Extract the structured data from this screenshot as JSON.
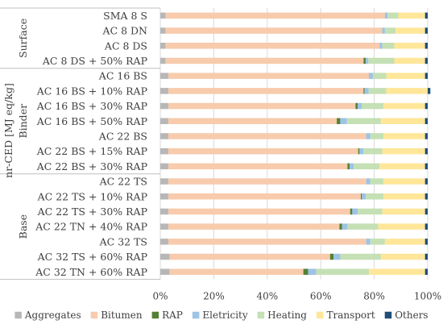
{
  "chart_data": {
    "type": "bar",
    "orientation": "horizontal",
    "stacked": "percent",
    "ylabel": "nr-CED [MJ eq/kg]",
    "xlim": [
      0,
      100
    ],
    "xticks": [
      "0%",
      "20%",
      "40%",
      "60%",
      "80%",
      "100%"
    ],
    "grid": true,
    "legend_position": "bottom",
    "groups": [
      {
        "name": "Surface",
        "categories": [
          "SMA 8 S",
          "AC 8 DN",
          "AC 8 DS",
          "AC 8 DS + 50% RAP"
        ]
      },
      {
        "name": "Binder",
        "categories": [
          "AC 16 BS",
          "AC 16 BS + 10% RAP",
          "AC 16 BS + 30% RAP",
          "AC 16 BS + 50% RAP",
          "AC 22 BS",
          "AC 22 BS + 15% RAP",
          "AC 22 BS + 30% RAP"
        ]
      },
      {
        "name": "Base",
        "categories": [
          "AC 22 TS",
          "AC 22 TS + 10% RAP",
          "AC 22 TS + 30% RAP",
          "AC 22 TN + 40% RAP",
          "AC 32 TS",
          "AC 32 TS + 60% RAP",
          "AC 32 TN + 60% RAP"
        ]
      }
    ],
    "categories": [
      "SMA 8 S",
      "AC 8 DN",
      "AC 8 DS",
      "AC 8 DS + 50% RAP",
      "AC 16 BS",
      "AC 16 BS + 10% RAP",
      "AC 16 BS + 30% RAP",
      "AC 16 BS + 50% RAP",
      "AC 22 BS",
      "AC 22 BS + 15% RAP",
      "AC 22 BS + 30% RAP",
      "AC 22 TS",
      "AC 22 TS + 10% RAP",
      "AC 22 TS + 30% RAP",
      "AC 22 TN + 40% RAP",
      "AC 32 TS",
      "AC 32 TS + 60% RAP",
      "AC 32 TN + 60% RAP"
    ],
    "series": [
      {
        "name": "Aggregates",
        "color": "#b7b7b7",
        "values": [
          2.0,
          2.0,
          2.0,
          2.0,
          3.0,
          3.0,
          3.0,
          3.0,
          3.0,
          3.0,
          3.0,
          3.0,
          3.0,
          3.0,
          3.0,
          3.0,
          3.5,
          3.5
        ]
      },
      {
        "name": "Bitumen",
        "color": "#f7cbac",
        "values": [
          82.0,
          81.0,
          80.0,
          74.0,
          75.0,
          73.0,
          70.0,
          63.0,
          74.0,
          71.0,
          67.0,
          74.0,
          72.0,
          68.0,
          64.0,
          74.0,
          60.0,
          50.0
        ]
      },
      {
        "name": "RAP",
        "color": "#548235",
        "values": [
          0.0,
          0.0,
          0.0,
          0.8,
          0.0,
          0.4,
          0.8,
          1.3,
          0.0,
          0.5,
          0.8,
          0.0,
          0.4,
          0.8,
          1.0,
          0.0,
          1.3,
          1.8
        ]
      },
      {
        "name": "Eletricity",
        "color": "#9dc3e6",
        "values": [
          1.0,
          1.0,
          1.0,
          1.0,
          1.5,
          1.5,
          1.5,
          2.5,
          1.5,
          1.5,
          1.5,
          1.5,
          1.5,
          2.0,
          2.0,
          1.5,
          2.5,
          3.0
        ]
      },
      {
        "name": "Heating",
        "color": "#c5e0b4",
        "values": [
          4.0,
          4.0,
          4.5,
          9.7,
          5.0,
          6.6,
          8.2,
          12.7,
          5.0,
          7.0,
          9.7,
          5.0,
          6.6,
          9.2,
          11.5,
          5.5,
          15.2,
          19.7
        ]
      },
      {
        "name": "Transport",
        "color": "#ffe699",
        "values": [
          10.0,
          11.0,
          11.5,
          11.5,
          14.5,
          15.5,
          15.5,
          16.5,
          15.5,
          16.0,
          17.0,
          15.5,
          15.5,
          16.0,
          17.5,
          15.0,
          16.5,
          21.0
        ]
      },
      {
        "name": "Others",
        "color": "#1f4e79",
        "values": [
          1.0,
          1.0,
          1.0,
          1.0,
          1.0,
          1.0,
          1.0,
          1.0,
          1.0,
          1.0,
          1.0,
          1.0,
          1.0,
          1.0,
          1.0,
          1.0,
          1.0,
          1.0
        ]
      }
    ]
  }
}
